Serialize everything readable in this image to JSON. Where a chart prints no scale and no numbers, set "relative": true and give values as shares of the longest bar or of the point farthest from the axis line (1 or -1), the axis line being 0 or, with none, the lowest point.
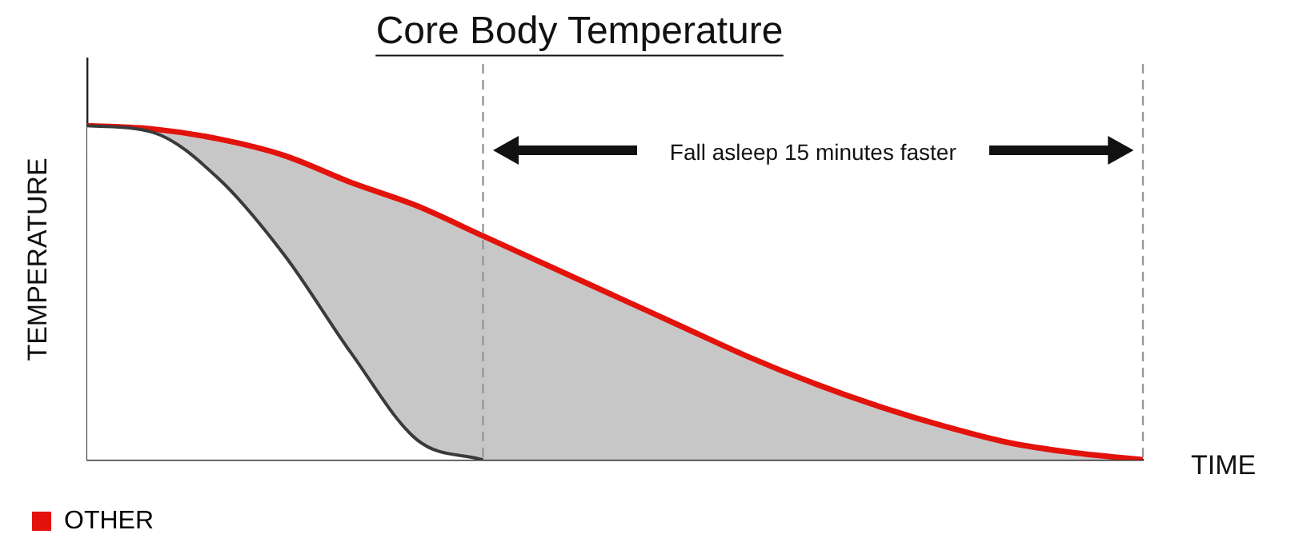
{
  "chart_data": {
    "type": "line",
    "title": "Core Body Temperature",
    "xlabel": "TIME",
    "ylabel": "TEMPERATURE",
    "relative": true,
    "grid": false,
    "legend": "bottom left",
    "marker": "none",
    "categories": [
      null,
      null,
      null,
      null,
      null,
      null,
      null,
      null,
      null,
      null,
      null,
      null,
      null,
      null,
      null,
      null,
      null
    ],
    "series": [
      {
        "color": "#3a3a3a",
        "values": [
          1,
          0.98,
          0.84,
          0.61,
          0.32,
          0.06,
          0,
          null,
          null,
          null,
          null,
          null,
          null,
          null,
          null,
          null,
          null
        ]
      },
      {
        "name": "OTHER",
        "color": "#e3120b",
        "values": [
          1,
          0.99,
          0.96,
          0.91,
          0.83,
          0.76,
          0.67,
          0.58,
          0.49,
          0.4,
          0.31,
          0.23,
          0.16,
          0.1,
          0.05,
          0.02,
          0
        ]
      }
    ],
    "annotations": [
      "Fall asleep 15 minutes faster"
    ]
  }
}
